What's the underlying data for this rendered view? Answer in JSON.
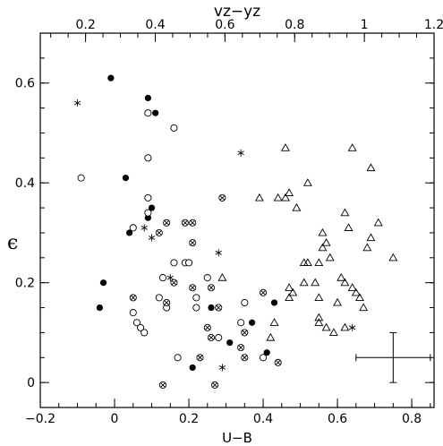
{
  "chart_data": {
    "type": "scatter",
    "xlabel": "U−B",
    "top_xlabel": "vz−yz",
    "ylabel": "ϵ",
    "xlim": [
      -0.2,
      0.86
    ],
    "ylim": [
      -0.05,
      0.7
    ],
    "top_xlim": [
      0.07,
      1.2
    ],
    "xticks": [
      -0.2,
      0,
      0.2,
      0.4,
      0.6,
      0.8
    ],
    "xtick_labels": [
      "−0.2",
      "0",
      "0.2",
      "0.4",
      "0.6",
      "0.8"
    ],
    "top_xticks": [
      0.2,
      0.4,
      0.6,
      0.8,
      1,
      1.2
    ],
    "top_xtick_labels": [
      "0.2",
      "0.4",
      "0.6",
      "0.8",
      "1",
      "1.2"
    ],
    "yticks": [
      0,
      0.2,
      0.4,
      0.6
    ],
    "ytick_labels": [
      "0",
      "0.2",
      "0.4",
      "0.6"
    ],
    "error_bar": {
      "x": 0.75,
      "y": 0.05,
      "xerr": 0.1,
      "yerr": 0.05
    },
    "series": [
      {
        "marker": "filled-circle",
        "points": [
          [
            -0.01,
            0.61
          ],
          [
            0.09,
            0.57
          ],
          [
            0.11,
            0.54
          ],
          [
            0.03,
            0.41
          ],
          [
            0.1,
            0.35
          ],
          [
            0.09,
            0.33
          ],
          [
            0.04,
            0.3
          ],
          [
            -0.03,
            0.2
          ],
          [
            -0.04,
            0.15
          ],
          [
            0.26,
            0.15
          ],
          [
            0.43,
            0.16
          ],
          [
            0.37,
            0.12
          ],
          [
            0.31,
            0.08
          ],
          [
            0.41,
            0.06
          ],
          [
            0.21,
            0.03
          ]
        ]
      },
      {
        "marker": "open-circle",
        "points": [
          [
            -0.09,
            0.41
          ],
          [
            0.09,
            0.54
          ],
          [
            0.16,
            0.51
          ],
          [
            0.09,
            0.45
          ],
          [
            0.09,
            0.37
          ],
          [
            0.09,
            0.34
          ],
          [
            0.05,
            0.31
          ],
          [
            0.13,
            0.21
          ],
          [
            0.16,
            0.24
          ],
          [
            0.19,
            0.24
          ],
          [
            0.2,
            0.24
          ],
          [
            0.25,
            0.21
          ],
          [
            0.12,
            0.17
          ],
          [
            0.14,
            0.15
          ],
          [
            0.22,
            0.17
          ],
          [
            0.22,
            0.15
          ],
          [
            0.05,
            0.14
          ],
          [
            0.06,
            0.12
          ],
          [
            0.07,
            0.11
          ],
          [
            0.08,
            0.1
          ],
          [
            0.17,
            0.05
          ],
          [
            0.28,
            0.09
          ],
          [
            0.34,
            0.12
          ],
          [
            0.35,
            0.16
          ],
          [
            0.4,
            0.05
          ]
        ]
      },
      {
        "marker": "crossed-circle",
        "points": [
          [
            0.29,
            0.37
          ],
          [
            0.14,
            0.32
          ],
          [
            0.19,
            0.32
          ],
          [
            0.21,
            0.32
          ],
          [
            0.12,
            0.3
          ],
          [
            0.21,
            0.28
          ],
          [
            0.05,
            0.17
          ],
          [
            0.14,
            0.16
          ],
          [
            0.16,
            0.2
          ],
          [
            0.21,
            0.19
          ],
          [
            0.26,
            0.19
          ],
          [
            0.28,
            0.15
          ],
          [
            0.25,
            0.11
          ],
          [
            0.26,
            0.09
          ],
          [
            0.23,
            0.05
          ],
          [
            0.34,
            0.07
          ],
          [
            0.35,
            0.05
          ],
          [
            0.35,
            0.1
          ],
          [
            0.4,
            0.18
          ],
          [
            0.44,
            0.04
          ],
          [
            0.13,
            -0.005
          ],
          [
            0.27,
            -0.005
          ]
        ]
      },
      {
        "marker": "asterisk",
        "points": [
          [
            -0.1,
            0.56
          ],
          [
            0.34,
            0.46
          ],
          [
            0.08,
            0.31
          ],
          [
            0.1,
            0.29
          ],
          [
            0.28,
            0.26
          ],
          [
            0.15,
            0.21
          ],
          [
            0.29,
            0.03
          ],
          [
            0.64,
            0.11
          ]
        ]
      },
      {
        "marker": "open-triangle",
        "points": [
          [
            0.46,
            0.47
          ],
          [
            0.64,
            0.47
          ],
          [
            0.69,
            0.43
          ],
          [
            0.52,
            0.4
          ],
          [
            0.47,
            0.38
          ],
          [
            0.46,
            0.37
          ],
          [
            0.44,
            0.37
          ],
          [
            0.39,
            0.37
          ],
          [
            0.49,
            0.35
          ],
          [
            0.62,
            0.34
          ],
          [
            0.71,
            0.32
          ],
          [
            0.56,
            0.3
          ],
          [
            0.63,
            0.31
          ],
          [
            0.69,
            0.29
          ],
          [
            0.57,
            0.28
          ],
          [
            0.56,
            0.27
          ],
          [
            0.58,
            0.25
          ],
          [
            0.68,
            0.27
          ],
          [
            0.75,
            0.25
          ],
          [
            0.52,
            0.24
          ],
          [
            0.51,
            0.24
          ],
          [
            0.55,
            0.24
          ],
          [
            0.29,
            0.21
          ],
          [
            0.47,
            0.19
          ],
          [
            0.51,
            0.2
          ],
          [
            0.54,
            0.2
          ],
          [
            0.61,
            0.21
          ],
          [
            0.62,
            0.2
          ],
          [
            0.64,
            0.19
          ],
          [
            0.65,
            0.18
          ],
          [
            0.66,
            0.17
          ],
          [
            0.48,
            0.18
          ],
          [
            0.47,
            0.17
          ],
          [
            0.55,
            0.17
          ],
          [
            0.67,
            0.15
          ],
          [
            0.6,
            0.16
          ],
          [
            0.43,
            0.12
          ],
          [
            0.55,
            0.13
          ],
          [
            0.55,
            0.12
          ],
          [
            0.57,
            0.11
          ],
          [
            0.62,
            0.11
          ],
          [
            0.59,
            0.1
          ],
          [
            0.42,
            0.09
          ]
        ]
      }
    ]
  }
}
